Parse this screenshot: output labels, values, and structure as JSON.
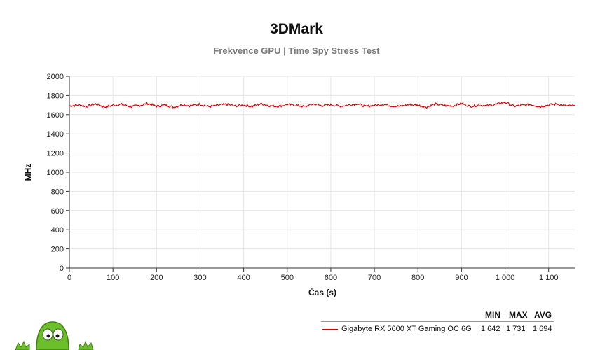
{
  "header": {
    "title": "3DMark",
    "subtitle": "Frekvence GPU | Time Spy Stress Test"
  },
  "chart_data": {
    "type": "line",
    "title": "3DMark",
    "subtitle": "Frekvence GPU | Time Spy Stress Test",
    "xlabel": "Čas (s)",
    "ylabel": "MHz",
    "xlim": [
      0,
      1160
    ],
    "ylim": [
      0,
      2000
    ],
    "x_ticks": [
      0,
      100,
      200,
      300,
      400,
      500,
      600,
      700,
      800,
      900,
      1000,
      1100
    ],
    "x_tick_labels": [
      "0",
      "100",
      "200",
      "300",
      "400",
      "500",
      "600",
      "700",
      "800",
      "900",
      "1 000",
      "1 100"
    ],
    "y_ticks": [
      0,
      200,
      400,
      600,
      800,
      1000,
      1200,
      1400,
      1600,
      1800,
      2000
    ],
    "y_tick_labels": [
      "0",
      "200",
      "400",
      "600",
      "800",
      "1000",
      "1200",
      "1400",
      "1600",
      "1800",
      "2000"
    ],
    "grid": true,
    "series": [
      {
        "name": "Gigabyte RX 5600 XT Gaming OC 6G",
        "color": "#e00000",
        "x": [
          0,
          20,
          40,
          60,
          80,
          100,
          120,
          140,
          160,
          180,
          200,
          220,
          240,
          260,
          280,
          300,
          320,
          340,
          360,
          380,
          400,
          420,
          440,
          460,
          480,
          500,
          520,
          540,
          560,
          580,
          600,
          620,
          640,
          660,
          680,
          700,
          720,
          740,
          760,
          780,
          800,
          820,
          840,
          860,
          880,
          900,
          920,
          940,
          960,
          980,
          1000,
          1020,
          1040,
          1060,
          1080,
          1100,
          1120,
          1140,
          1160
        ],
        "y": [
          1690,
          1702,
          1686,
          1712,
          1680,
          1698,
          1707,
          1684,
          1695,
          1716,
          1688,
          1700,
          1678,
          1705,
          1692,
          1710,
          1683,
          1697,
          1708,
          1690,
          1701,
          1686,
          1714,
          1693,
          1688,
          1706,
          1699,
          1682,
          1711,
          1694,
          1703,
          1689,
          1700,
          1715,
          1685,
          1696,
          1708,
          1691,
          1687,
          1704,
          1698,
          1679,
          1712,
          1695,
          1690,
          1718,
          1686,
          1700,
          1693,
          1709,
          1731,
          1688,
          1697,
          1706,
          1683,
          1701,
          1712,
          1690,
          1694
        ]
      }
    ],
    "legend": {
      "position": "bottom-right",
      "headers": [
        "MIN",
        "MAX",
        "AVG"
      ],
      "rows": [
        {
          "name": "Gigabyte RX 5600 XT Gaming OC 6G",
          "min": "1 642",
          "max": "1 731",
          "avg": "1 694"
        }
      ]
    }
  }
}
